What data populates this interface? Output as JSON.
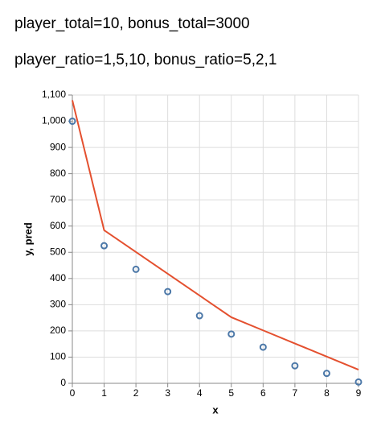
{
  "chart_data": {
    "type": "line",
    "title": "player_total=10, bonus_total=3000",
    "subtitle": "player_ratio=1,5,10, bonus_ratio=5,2,1",
    "x_label": "x",
    "y_label": "y, pred",
    "x": [
      0,
      1,
      2,
      3,
      4,
      5,
      6,
      7,
      8,
      9
    ],
    "series": [
      {
        "style": "point",
        "color": "#4c78a8",
        "values": [
          1000,
          525,
          435,
          350,
          258,
          188,
          138,
          67,
          38,
          5
        ]
      },
      {
        "style": "line",
        "color": "#e4502f",
        "values": [
          1080,
          584,
          501,
          418,
          335,
          252,
          202,
          152,
          102,
          52
        ]
      }
    ],
    "xlim": [
      0,
      9
    ],
    "xticks": [
      0,
      1,
      2,
      3,
      4,
      5,
      6,
      7,
      8,
      9
    ],
    "ylim": [
      0,
      1100
    ],
    "yticks": [
      0,
      100,
      200,
      300,
      400,
      500,
      600,
      700,
      800,
      900,
      {
        "value": 1000,
        "label": "1,000"
      },
      {
        "value": 1100,
        "label": "1,100"
      }
    ],
    "grid": true
  }
}
